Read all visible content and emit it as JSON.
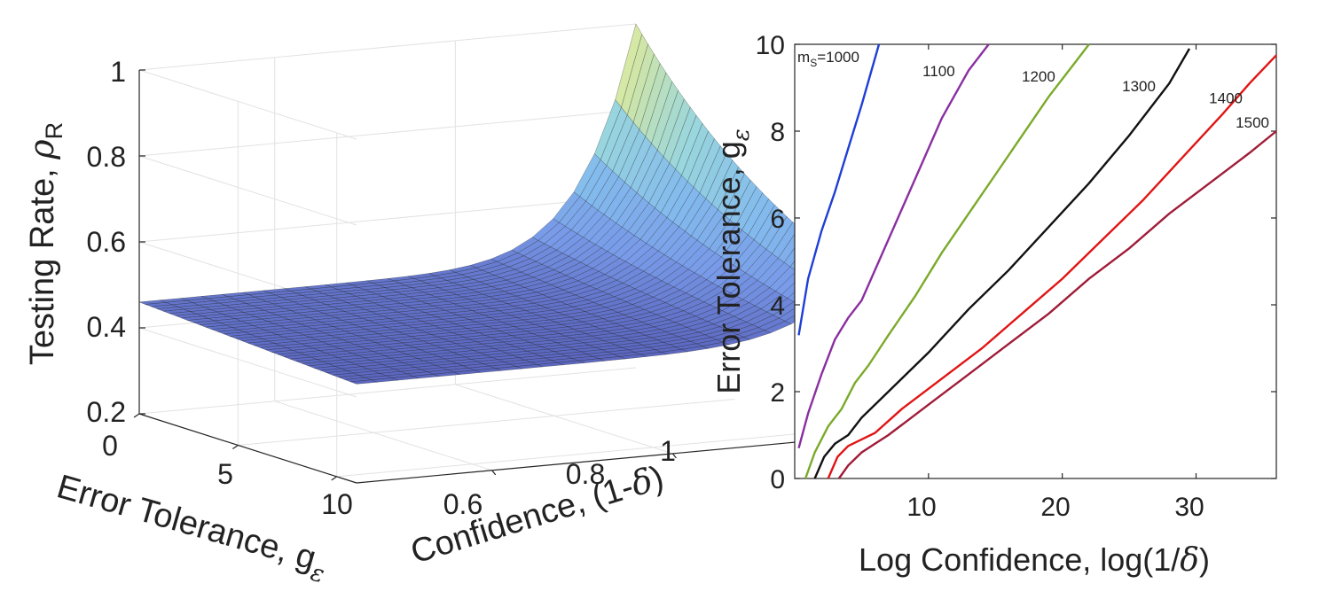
{
  "chart_data": [
    {
      "type": "surface",
      "xlabel_parts": [
        "Error Tolerance, g",
        "ε"
      ],
      "ylabel_parts": [
        "Confidence, (1-",
        "δ",
        ")"
      ],
      "zlabel_parts": [
        "Testing Rate, ",
        "ρ",
        "R"
      ],
      "x_ticks": [
        "0",
        "5",
        "10"
      ],
      "y_ticks": [
        "0.6",
        "0.8",
        "1"
      ],
      "z_ticks": [
        "0.2",
        "0.4",
        "0.6",
        "0.8",
        "1"
      ],
      "x_range": [
        0,
        11
      ],
      "y_range": [
        0.45,
        1.0
      ],
      "z_range": [
        0.2,
        1.0
      ],
      "front_edge_values": [
        {
          "g": 0,
          "z": 0.46
        },
        {
          "g": 5.5,
          "z": 0.44
        },
        {
          "g": 11,
          "z": 0.43
        }
      ],
      "corner_values": [
        {
          "g": 0,
          "conf": 1.0,
          "z": 1.0
        },
        {
          "g": 11,
          "conf": 1.0,
          "z": 0.53
        }
      ],
      "colormap": "parula",
      "grid": true
    },
    {
      "type": "line",
      "xlabel_parts": [
        "Log Confidence, log(1/",
        "δ",
        ")"
      ],
      "ylabel_parts": [
        "Error Tolerance, g",
        "ε"
      ],
      "xlim": [
        0,
        36
      ],
      "ylim": [
        0,
        10
      ],
      "x_ticks": [
        "10",
        "20",
        "30"
      ],
      "y_ticks": [
        "0",
        "2",
        "4",
        "6",
        "8",
        "10"
      ],
      "grid": false,
      "series": [
        {
          "name": "1000",
          "label_prefix": "m",
          "label_sub": "S",
          "label_suffix": "=1000",
          "color": "#1f3fd6",
          "x": [
            0.3,
            1.0,
            2.0,
            3.0,
            4.0,
            5.0,
            6.3
          ],
          "y": [
            3.3,
            4.6,
            5.7,
            6.6,
            7.6,
            8.6,
            10.0
          ]
        },
        {
          "name": "1100",
          "label": "1100",
          "color": "#8a2fa0",
          "x": [
            0.3,
            1.0,
            2.0,
            3.0,
            4.0,
            5.0,
            7.0,
            9.0,
            11.0,
            13.0,
            14.5
          ],
          "y": [
            0.7,
            1.5,
            2.4,
            3.2,
            3.7,
            4.1,
            5.5,
            6.9,
            8.3,
            9.4,
            10.0
          ]
        },
        {
          "name": "1200",
          "label": "1200",
          "color": "#7aaa2a",
          "x": [
            0.8,
            1.5,
            2.5,
            3.5,
            4.5,
            5.5,
            7.0,
            9.0,
            11.0,
            13.0,
            15.0,
            17.0,
            19.0,
            21.0,
            22.0
          ],
          "y": [
            0.0,
            0.6,
            1.2,
            1.6,
            2.2,
            2.6,
            3.3,
            4.2,
            5.2,
            6.1,
            7.0,
            7.9,
            8.8,
            9.6,
            10.0
          ]
        },
        {
          "name": "1300",
          "label": "1300",
          "color": "#111111",
          "x": [
            1.5,
            2.2,
            3.0,
            4.0,
            5.0,
            7.0,
            10.0,
            13.0,
            16.0,
            19.0,
            22.0,
            25.0,
            28.0,
            29.5
          ],
          "y": [
            0.0,
            0.5,
            0.8,
            1.0,
            1.4,
            2.0,
            2.9,
            3.9,
            4.8,
            5.8,
            6.8,
            7.9,
            9.1,
            9.9
          ]
        },
        {
          "name": "1400",
          "label": "1400",
          "color": "#e01515",
          "x": [
            2.5,
            3.2,
            4.0,
            5.0,
            6.0,
            8.0,
            11.0,
            14.0,
            17.0,
            20.0,
            23.0,
            26.0,
            29.0,
            32.0,
            34.0,
            36.0
          ],
          "y": [
            0.0,
            0.5,
            0.75,
            0.9,
            1.05,
            1.6,
            2.3,
            3.0,
            3.8,
            4.6,
            5.5,
            6.4,
            7.4,
            8.4,
            9.1,
            9.75
          ]
        },
        {
          "name": "1500",
          "label": "1500",
          "color": "#a01c38",
          "x": [
            3.3,
            4.0,
            5.0,
            6.0,
            7.0,
            10.0,
            13.0,
            16.0,
            19.0,
            22.0,
            25.0,
            28.0,
            31.0,
            34.0,
            36.0
          ],
          "y": [
            0.0,
            0.3,
            0.6,
            0.8,
            1.0,
            1.7,
            2.4,
            3.1,
            3.8,
            4.6,
            5.3,
            6.1,
            6.8,
            7.5,
            8.0
          ]
        }
      ]
    }
  ]
}
